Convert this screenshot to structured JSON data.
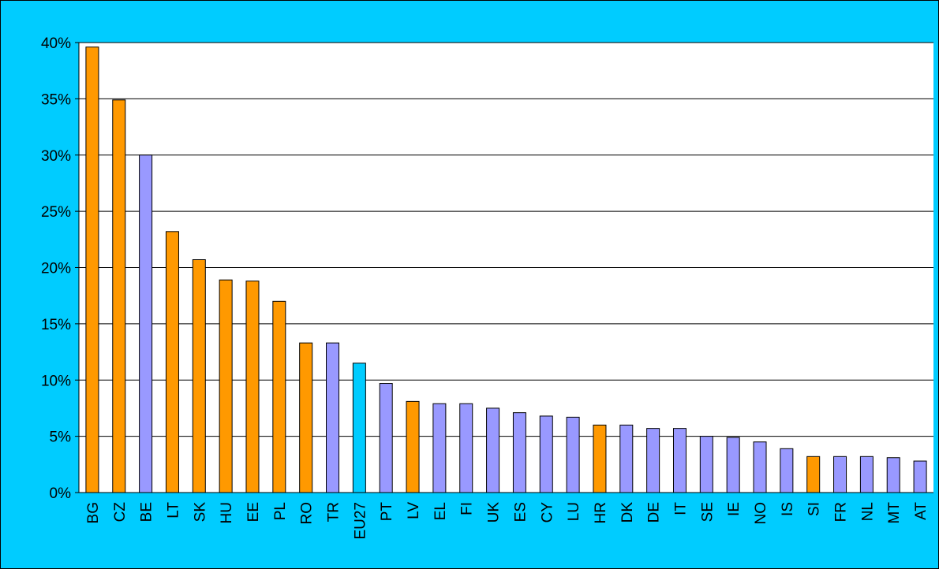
{
  "chart_data": {
    "type": "bar",
    "categories": [
      "BG",
      "CZ",
      "BE",
      "LT",
      "SK",
      "HU",
      "EE",
      "PL",
      "RO",
      "TR",
      "EU27",
      "PT",
      "LV",
      "EL",
      "FI",
      "UK",
      "ES",
      "CY",
      "LU",
      "HR",
      "DK",
      "DE",
      "IT",
      "SE",
      "IE",
      "NO",
      "IS",
      "SI",
      "FR",
      "NL",
      "MT",
      "AT"
    ],
    "values": [
      39.6,
      34.9,
      30.0,
      23.2,
      20.7,
      18.9,
      18.8,
      17.0,
      13.3,
      13.3,
      11.5,
      9.7,
      8.1,
      7.9,
      7.9,
      7.5,
      7.1,
      6.8,
      6.7,
      6.0,
      6.0,
      5.7,
      5.7,
      5.0,
      4.9,
      4.5,
      3.9,
      3.2,
      3.2,
      3.2,
      3.1,
      2.8
    ],
    "colors": [
      "#ff9900",
      "#ff9900",
      "#9999ff",
      "#ff9900",
      "#ff9900",
      "#ff9900",
      "#ff9900",
      "#ff9900",
      "#ff9900",
      "#9999ff",
      "#00ccff",
      "#9999ff",
      "#ff9900",
      "#9999ff",
      "#9999ff",
      "#9999ff",
      "#9999ff",
      "#9999ff",
      "#9999ff",
      "#ff9900",
      "#9999ff",
      "#9999ff",
      "#9999ff",
      "#9999ff",
      "#9999ff",
      "#9999ff",
      "#9999ff",
      "#ff9900",
      "#9999ff",
      "#9999ff",
      "#9999ff",
      "#9999ff"
    ],
    "ylim": [
      0,
      40
    ],
    "yticks": [
      {
        "value": 0,
        "label": "0%"
      },
      {
        "value": 5,
        "label": "5%"
      },
      {
        "value": 10,
        "label": "10%"
      },
      {
        "value": 15,
        "label": "15%"
      },
      {
        "value": 20,
        "label": "20%"
      },
      {
        "value": 25,
        "label": "25%"
      },
      {
        "value": 30,
        "label": "30%"
      },
      {
        "value": 35,
        "label": "35%"
      },
      {
        "value": 40,
        "label": "40%"
      }
    ],
    "grid": true
  }
}
